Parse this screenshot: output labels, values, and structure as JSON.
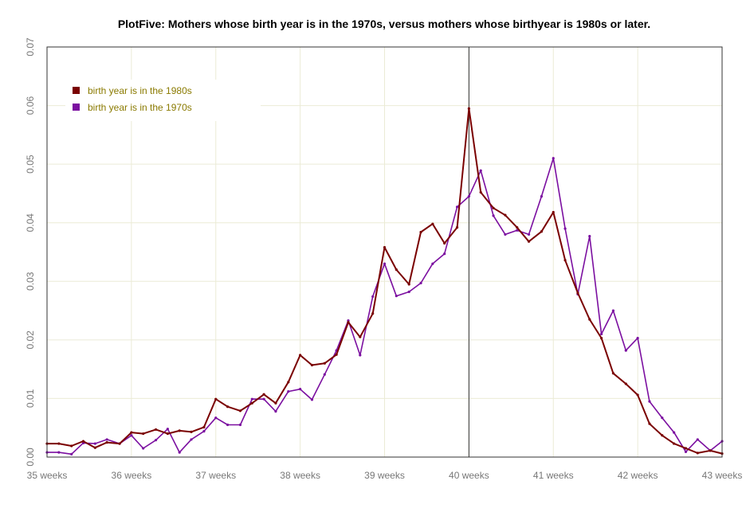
{
  "chart_data": {
    "type": "line",
    "title": "PlotFive: Mothers whose birth year is in the 1970s, versus mothers whose birthyear is 1980s or later.",
    "xlabel": "",
    "ylabel": "",
    "xlim": [
      35,
      43
    ],
    "ylim": [
      0,
      0.07
    ],
    "x_ticks": [
      {
        "value": 35,
        "label": "35 weeks"
      },
      {
        "value": 36,
        "label": "36 weeks"
      },
      {
        "value": 37,
        "label": "37 weeks"
      },
      {
        "value": 38,
        "label": "38 weeks"
      },
      {
        "value": 39,
        "label": "39 weeks"
      },
      {
        "value": 40,
        "label": "40 weeks"
      },
      {
        "value": 41,
        "label": "41 weeks"
      },
      {
        "value": 42,
        "label": "42 weeks"
      },
      {
        "value": 43,
        "label": "43 weeks"
      }
    ],
    "y_ticks": [
      {
        "value": 0,
        "label": "0.00"
      },
      {
        "value": 0.01,
        "label": "0.01"
      },
      {
        "value": 0.02,
        "label": "0.02"
      },
      {
        "value": 0.03,
        "label": "0.03"
      },
      {
        "value": 0.04,
        "label": "0.04"
      },
      {
        "value": 0.05,
        "label": "0.05"
      },
      {
        "value": 0.06,
        "label": "0.06"
      },
      {
        "value": 0.07,
        "label": "0.07"
      }
    ],
    "grid": true,
    "vline_x": 40,
    "legend_position": "top-left",
    "series": [
      {
        "name": "birth year is in the 1980s",
        "color": "#7a0000",
        "x": [
          35.0,
          35.14,
          35.29,
          35.43,
          35.57,
          35.71,
          35.86,
          36.0,
          36.14,
          36.29,
          36.43,
          36.57,
          36.71,
          36.86,
          37.0,
          37.14,
          37.29,
          37.43,
          37.57,
          37.71,
          37.86,
          38.0,
          38.14,
          38.29,
          38.43,
          38.57,
          38.71,
          38.86,
          39.0,
          39.14,
          39.29,
          39.43,
          39.57,
          39.71,
          39.86,
          40.0,
          40.14,
          40.29,
          40.43,
          40.57,
          40.71,
          40.86,
          41.0,
          41.14,
          41.29,
          41.43,
          41.57,
          41.71,
          41.86,
          42.0,
          42.14,
          42.29,
          42.43,
          42.57,
          42.71,
          42.86,
          43.0
        ],
        "y": [
          0.0023,
          0.0023,
          0.0019,
          0.0027,
          0.0016,
          0.0025,
          0.0023,
          0.0042,
          0.004,
          0.0047,
          0.004,
          0.0045,
          0.0043,
          0.0051,
          0.0099,
          0.0086,
          0.0079,
          0.0092,
          0.0107,
          0.0092,
          0.0128,
          0.0174,
          0.0157,
          0.016,
          0.0175,
          0.023,
          0.0205,
          0.0245,
          0.0358,
          0.032,
          0.0295,
          0.0384,
          0.0398,
          0.0365,
          0.0392,
          0.0595,
          0.0452,
          0.0425,
          0.0413,
          0.0392,
          0.0368,
          0.0385,
          0.0418,
          0.0336,
          0.028,
          0.0235,
          0.0203,
          0.0143,
          0.0125,
          0.0106,
          0.0057,
          0.0037,
          0.0023,
          0.0015,
          0.0007,
          0.0011,
          0.0006
        ]
      },
      {
        "name": "birth year is in the 1970s",
        "color": "#7b0fa0",
        "x": [
          35.0,
          35.14,
          35.29,
          35.43,
          35.57,
          35.71,
          35.86,
          36.0,
          36.14,
          36.29,
          36.43,
          36.57,
          36.71,
          36.86,
          37.0,
          37.14,
          37.29,
          37.43,
          37.57,
          37.71,
          37.86,
          38.0,
          38.14,
          38.29,
          38.43,
          38.57,
          38.71,
          38.86,
          39.0,
          39.14,
          39.29,
          39.43,
          39.57,
          39.71,
          39.86,
          40.0,
          40.14,
          40.29,
          40.43,
          40.57,
          40.71,
          40.86,
          41.0,
          41.14,
          41.29,
          41.43,
          41.57,
          41.71,
          41.86,
          42.0,
          42.14,
          42.29,
          42.43,
          42.57,
          42.71,
          42.86,
          43.0
        ],
        "y": [
          0.0008,
          0.0008,
          0.0005,
          0.0024,
          0.0023,
          0.003,
          0.0023,
          0.0037,
          0.0015,
          0.0029,
          0.0048,
          0.0008,
          0.003,
          0.0044,
          0.0067,
          0.0055,
          0.0055,
          0.0099,
          0.0099,
          0.0078,
          0.0112,
          0.0116,
          0.0098,
          0.0141,
          0.0182,
          0.0233,
          0.0174,
          0.0274,
          0.033,
          0.0275,
          0.0282,
          0.0297,
          0.033,
          0.0347,
          0.0427,
          0.0445,
          0.0489,
          0.0412,
          0.038,
          0.0387,
          0.038,
          0.0445,
          0.051,
          0.039,
          0.0278,
          0.0377,
          0.021,
          0.025,
          0.0182,
          0.0203,
          0.0095,
          0.0067,
          0.0042,
          0.0009,
          0.003,
          0.0011,
          0.0027
        ]
      }
    ]
  }
}
